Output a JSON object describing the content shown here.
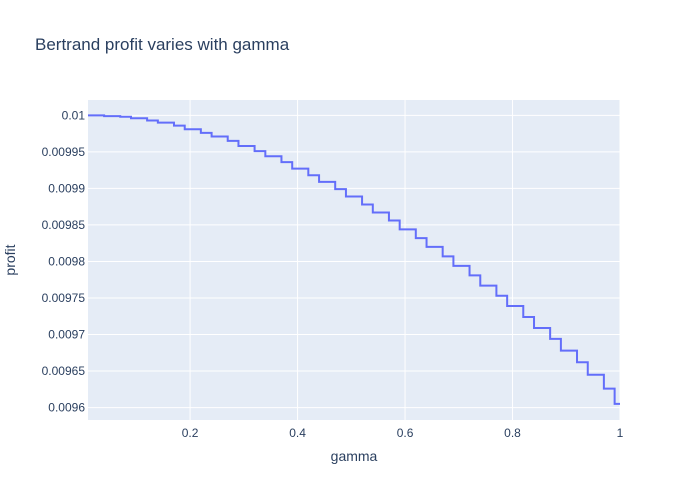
{
  "chart_data": {
    "type": "line",
    "line_shape": "step",
    "title": "Bertrand profit varies with gamma",
    "xlabel": "gamma",
    "ylabel": "profit",
    "xlim": [
      0.01,
      1.0
    ],
    "ylim": [
      0.009583,
      0.010021
    ],
    "x_ticks": [
      0.2,
      0.4,
      0.6,
      0.8,
      1.0
    ],
    "x_tick_labels": [
      "0.2",
      "0.4",
      "0.6",
      "0.8",
      "1"
    ],
    "y_ticks": [
      0.0096,
      0.00965,
      0.0097,
      0.00975,
      0.0098,
      0.00985,
      0.0099,
      0.00995,
      0.01
    ],
    "y_tick_labels": [
      "0.0096",
      "0.00965",
      "0.0097",
      "0.00975",
      "0.0098",
      "0.00985",
      "0.0099",
      "0.00995",
      "0.01"
    ],
    "grid": true,
    "colors": {
      "plot_bg": "#e5ecf6",
      "grid": "#ffffff",
      "line": "#636efa",
      "text": "#2a3f5f"
    },
    "series": [
      {
        "x": [
          0.01,
          0.04,
          0.07,
          0.09,
          0.12,
          0.14,
          0.17,
          0.19,
          0.22,
          0.24,
          0.27,
          0.29,
          0.32,
          0.34,
          0.37,
          0.39,
          0.42,
          0.44,
          0.47,
          0.49,
          0.52,
          0.54,
          0.57,
          0.59,
          0.62,
          0.64,
          0.67,
          0.69,
          0.72,
          0.74,
          0.77,
          0.79,
          0.82,
          0.84,
          0.87,
          0.89,
          0.92,
          0.94,
          0.97,
          0.99
        ],
        "y": [
          0.01,
          0.009999,
          0.009998,
          0.009996,
          0.009993,
          0.00999,
          0.009986,
          0.009981,
          0.009976,
          0.009971,
          0.009965,
          0.009958,
          0.009951,
          0.009944,
          0.009936,
          0.009927,
          0.009918,
          0.009909,
          0.009899,
          0.009889,
          0.009878,
          0.009867,
          0.009856,
          0.009844,
          0.009832,
          0.00982,
          0.009807,
          0.009794,
          0.009781,
          0.009767,
          0.009753,
          0.009739,
          0.009724,
          0.009709,
          0.009694,
          0.009678,
          0.009662,
          0.009645,
          0.009626,
          0.009605
        ]
      }
    ]
  }
}
